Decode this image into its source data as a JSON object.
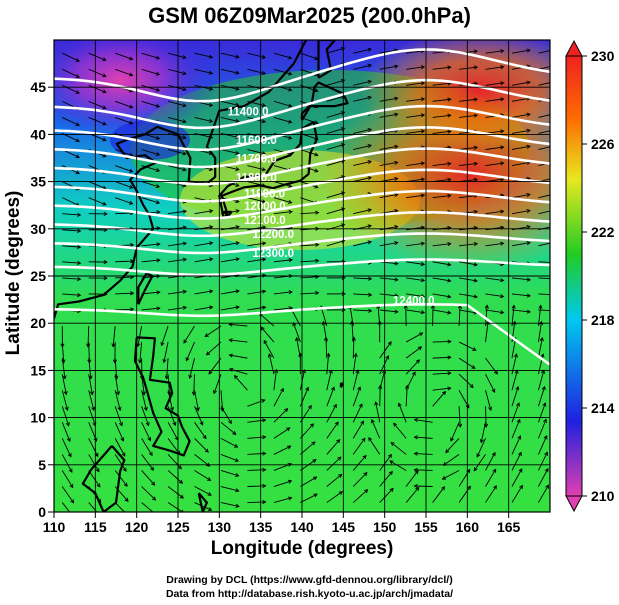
{
  "title": "GSM 06Z09Mar2025 (200.0hPa)",
  "xlabel": "Longitude (degrees)",
  "ylabel": "Latitude  (degrees)",
  "credits": {
    "line1": "Drawing by DCL (https://www.gfd-dennou.org/library/dcl/)",
    "line2": "Data from http://database.rish.kyoto-u.ac.jp/arch/jmadata/"
  },
  "chart_data": {
    "type": "heatmap",
    "field": "temperature",
    "xlim": [
      110,
      170
    ],
    "ylim": [
      0,
      50
    ],
    "xticks": [
      110,
      115,
      120,
      125,
      130,
      135,
      140,
      145,
      150,
      155,
      160,
      165
    ],
    "yticks": [
      0,
      5,
      10,
      15,
      20,
      25,
      30,
      35,
      40,
      45
    ],
    "colorbar": {
      "min": 210,
      "max": 230,
      "ticks": [
        210,
        214,
        218,
        222,
        226,
        230
      ],
      "colors": [
        "#e040b0",
        "#2020e0",
        "#00c8f0",
        "#22cc22",
        "#e8e820",
        "#ff6a00",
        "#ee2222"
      ]
    },
    "contour_labels": [
      {
        "text": "11400.0",
        "lon": 131,
        "lat": 42
      },
      {
        "text": "11600.0",
        "lon": 132,
        "lat": 39
      },
      {
        "text": "11700.0",
        "lon": 132,
        "lat": 37
      },
      {
        "text": "11800.0",
        "lon": 132,
        "lat": 35
      },
      {
        "text": "11900.0",
        "lon": 133,
        "lat": 33.3
      },
      {
        "text": "12000.0",
        "lon": 133,
        "lat": 32
      },
      {
        "text": "12100.0",
        "lon": 133,
        "lat": 30.5
      },
      {
        "text": "12200.0",
        "lon": 134,
        "lat": 29
      },
      {
        "text": "12300.0",
        "lon": 134,
        "lat": 27
      },
      {
        "text": "12400.0",
        "lon": 151,
        "lat": 22
      }
    ],
    "grid": true,
    "streamlines": true,
    "coastlines": true
  }
}
